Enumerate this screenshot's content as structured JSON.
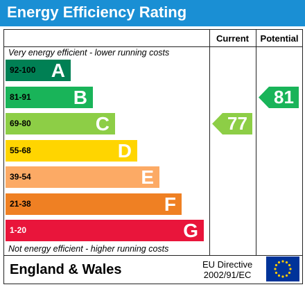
{
  "title": "Energy Efficiency Rating",
  "columns": {
    "current": "Current",
    "potential": "Potential"
  },
  "captions": {
    "top": "Very energy efficient - lower running costs",
    "bottom": "Not energy efficient - higher running costs"
  },
  "footer": {
    "country": "England & Wales",
    "directive_line1": "EU Directive",
    "directive_line2": "2002/91/EC"
  },
  "chart_data": {
    "type": "bar",
    "categories": [
      "A",
      "B",
      "C",
      "D",
      "E",
      "F",
      "G"
    ],
    "ranges": [
      "92-100",
      "81-91",
      "69-80",
      "55-68",
      "39-54",
      "21-38",
      "1-20"
    ],
    "colors": [
      "#008054",
      "#19b459",
      "#8dce46",
      "#ffd500",
      "#fcaa65",
      "#ef8023",
      "#e9153b"
    ],
    "range_text_colors": [
      "#000000",
      "#000000",
      "#000000",
      "#000000",
      "#000000",
      "#000000",
      "#ffffff"
    ],
    "current": {
      "value": 77,
      "band": "C",
      "color": "#8dce46"
    },
    "potential": {
      "value": 81,
      "band": "B",
      "color": "#19b459"
    }
  },
  "icons": {
    "eu_flag": "eu-flag-icon"
  }
}
